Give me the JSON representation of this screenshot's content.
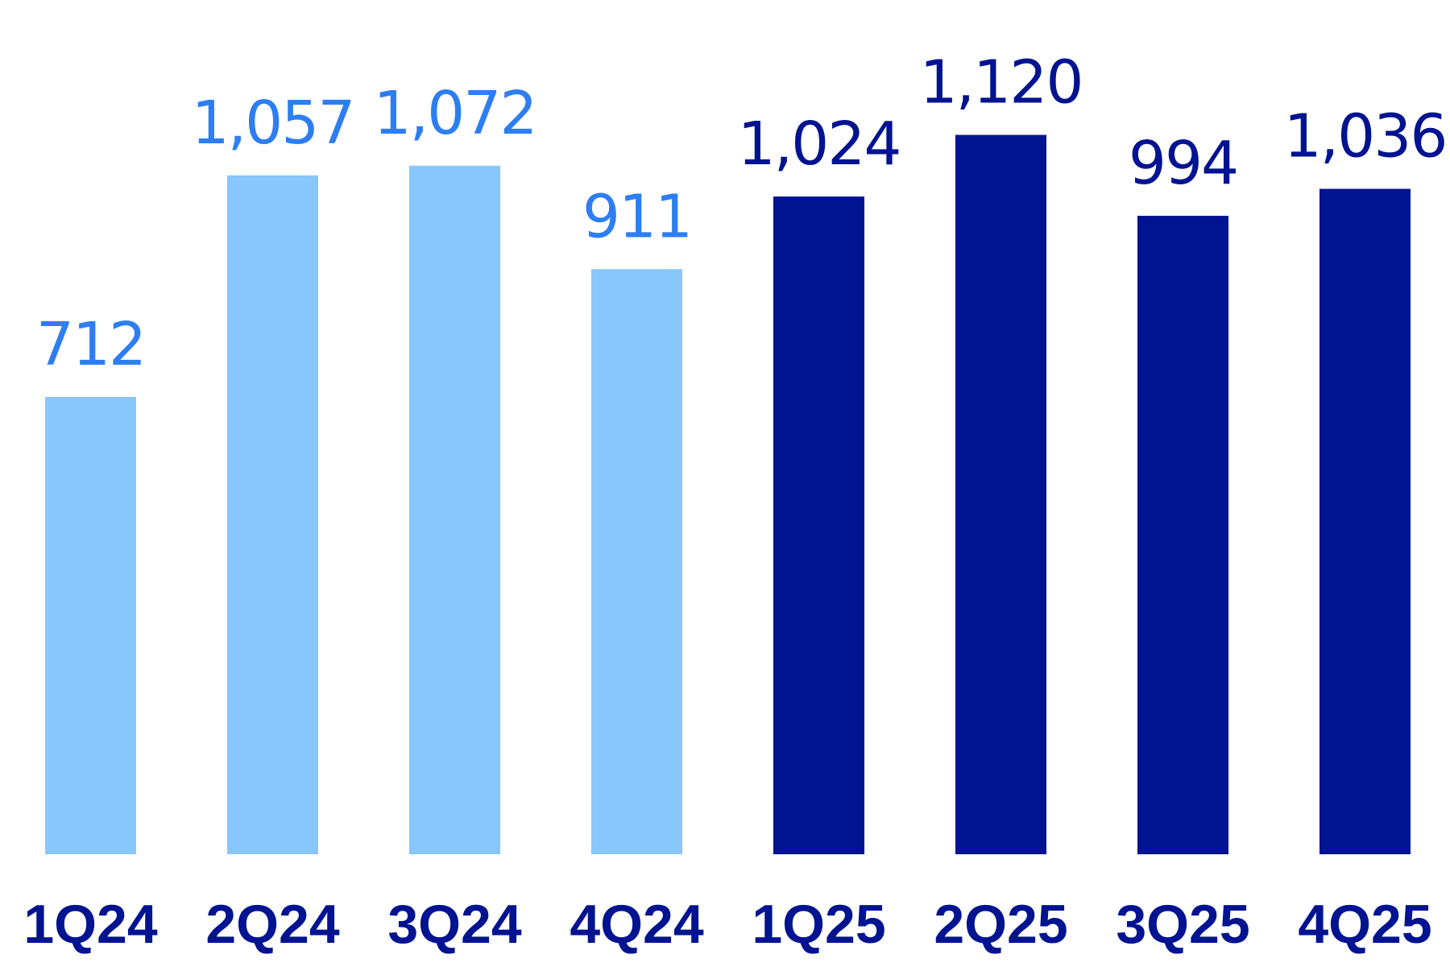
{
  "chart_data": {
    "type": "bar",
    "title": "",
    "xlabel": "",
    "ylabel": "",
    "categories": [
      "1Q24",
      "2Q24",
      "3Q24",
      "4Q24",
      "1Q25",
      "2Q25",
      "3Q25",
      "4Q25"
    ],
    "values": [
      712,
      1057,
      1072,
      911,
      1024,
      1120,
      994,
      1036
    ],
    "value_labels": [
      "712",
      "1,057",
      "1,072",
      "911",
      "1,024",
      "1,120",
      "994",
      "1,036"
    ],
    "ylim": [
      0,
      1330
    ],
    "grid": false,
    "axis_visible": false,
    "colors": {
      "bar_2024": "#87C7FE",
      "bar_2025": "#001391",
      "label_2024": "#2D7EF2",
      "label_2025": "#001391",
      "category_label": "#001391"
    }
  }
}
